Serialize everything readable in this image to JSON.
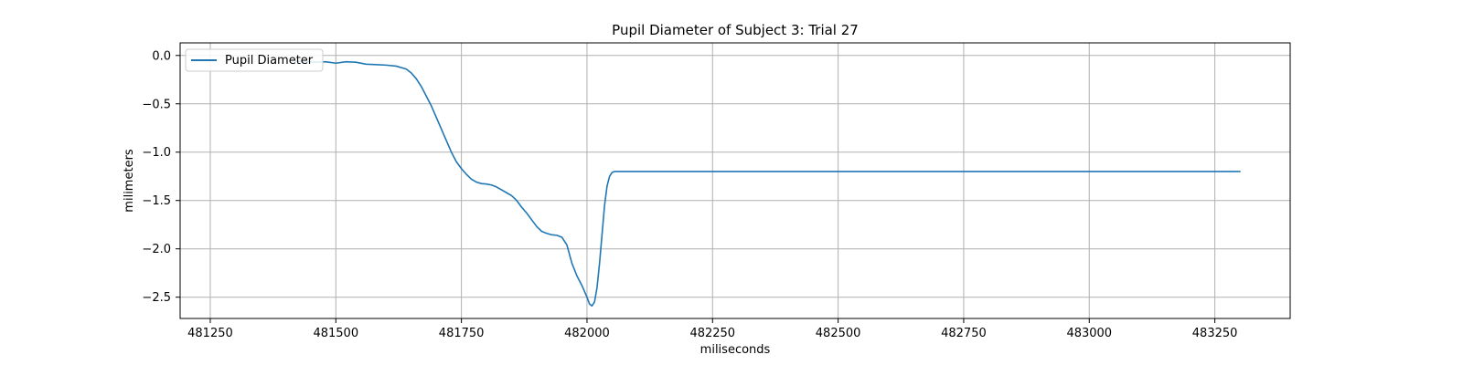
{
  "chart_data": {
    "type": "line",
    "title": "Pupil Diameter of Subject 3: Trial 27",
    "xlabel": "miliseconds",
    "ylabel": "milimeters",
    "xlim": [
      481190,
      483400
    ],
    "ylim": [
      -2.72,
      0.13
    ],
    "xticks": [
      481250,
      481500,
      481750,
      482000,
      482250,
      482500,
      482750,
      483000,
      483250
    ],
    "yticks": [
      0.0,
      -0.5,
      -1.0,
      -1.5,
      -2.0,
      -2.5
    ],
    "ytick_labels": [
      "0.0",
      "−0.5",
      "−1.0",
      "−1.5",
      "−2.0",
      "−2.5"
    ],
    "grid": true,
    "legend": {
      "position": "upper left"
    },
    "colors": {
      "series": "#1f77b4",
      "grid": "#b0b0b0"
    },
    "series": [
      {
        "name": "Pupil Diameter",
        "x": [
          481420,
          481440,
          481460,
          481480,
          481500,
          481520,
          481540,
          481560,
          481580,
          481600,
          481620,
          481640,
          481650,
          481660,
          481670,
          481680,
          481690,
          481700,
          481710,
          481720,
          481730,
          481740,
          481750,
          481760,
          481770,
          481780,
          481790,
          481800,
          481810,
          481820,
          481830,
          481840,
          481850,
          481860,
          481870,
          481880,
          481890,
          481900,
          481910,
          481920,
          481930,
          481940,
          481950,
          481960,
          481970,
          481980,
          481990,
          482000,
          482005,
          482010,
          482015,
          482020,
          482025,
          482030,
          482035,
          482040,
          482045,
          482050,
          482055,
          482060,
          482065,
          482070,
          482075,
          482080,
          482085,
          482090,
          482100,
          482150,
          482250,
          482500,
          482750,
          483000,
          483250,
          483300
        ],
        "y": [
          -0.06,
          -0.065,
          -0.07,
          -0.065,
          -0.08,
          -0.065,
          -0.07,
          -0.09,
          -0.095,
          -0.1,
          -0.11,
          -0.14,
          -0.18,
          -0.24,
          -0.32,
          -0.42,
          -0.52,
          -0.64,
          -0.76,
          -0.88,
          -1.0,
          -1.1,
          -1.17,
          -1.23,
          -1.28,
          -1.31,
          -1.325,
          -1.33,
          -1.34,
          -1.36,
          -1.39,
          -1.42,
          -1.45,
          -1.5,
          -1.57,
          -1.63,
          -1.7,
          -1.77,
          -1.82,
          -1.84,
          -1.855,
          -1.86,
          -1.88,
          -1.96,
          -2.15,
          -2.28,
          -2.38,
          -2.5,
          -2.57,
          -2.59,
          -2.55,
          -2.4,
          -2.15,
          -1.85,
          -1.55,
          -1.35,
          -1.25,
          -1.21,
          -1.2,
          -1.2,
          -1.2,
          -1.2,
          -1.2,
          -1.2,
          -1.2,
          -1.2,
          -1.2,
          -1.2,
          -1.2,
          -1.2,
          -1.2,
          -1.2,
          -1.2,
          -1.2
        ]
      }
    ]
  }
}
